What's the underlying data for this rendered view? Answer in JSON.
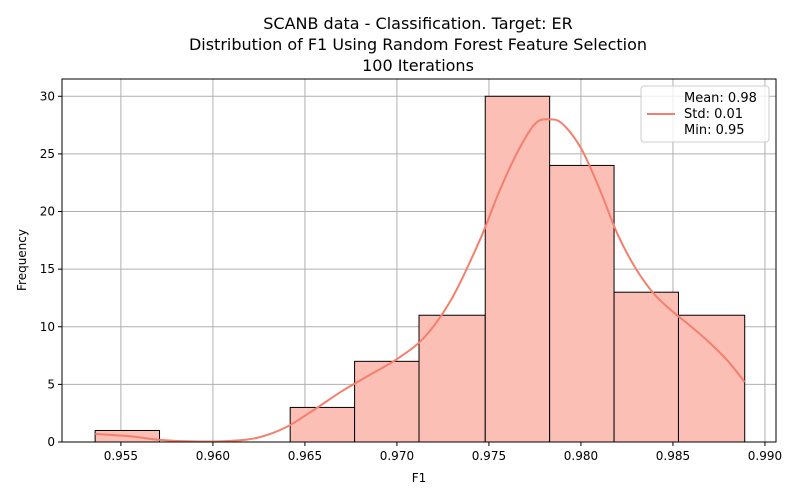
{
  "chart_data": {
    "type": "histogram",
    "title_lines": [
      "SCANB data - Classification. Target: ER",
      "Distribution of F1 Using Random Forest Feature Selection",
      "100 Iterations"
    ],
    "xlabel": "F1",
    "ylabel": "Frequency",
    "xlim": [
      0.9518,
      0.9906
    ],
    "ylim": [
      0,
      31.5
    ],
    "x_ticks": [
      0.955,
      0.96,
      0.965,
      0.97,
      0.975,
      0.98,
      0.985,
      0.99
    ],
    "x_tick_labels": [
      "0.955",
      "0.960",
      "0.965",
      "0.970",
      "0.975",
      "0.980",
      "0.985",
      "0.990"
    ],
    "y_ticks": [
      0,
      5,
      10,
      15,
      20,
      25,
      30
    ],
    "y_tick_labels": [
      "0",
      "5",
      "10",
      "15",
      "20",
      "25",
      "30"
    ],
    "grid": true,
    "bins": [
      {
        "x0": 0.9536,
        "x1": 0.9571,
        "count": 1
      },
      {
        "x0": 0.9571,
        "x1": 0.9606,
        "count": 0
      },
      {
        "x0": 0.9606,
        "x1": 0.9642,
        "count": 0
      },
      {
        "x0": 0.9642,
        "x1": 0.9677,
        "count": 3
      },
      {
        "x0": 0.9677,
        "x1": 0.9712,
        "count": 7
      },
      {
        "x0": 0.9712,
        "x1": 0.9748,
        "count": 11
      },
      {
        "x0": 0.9748,
        "x1": 0.9783,
        "count": 30
      },
      {
        "x0": 0.9783,
        "x1": 0.9818,
        "count": 24
      },
      {
        "x0": 0.9818,
        "x1": 0.9853,
        "count": 13
      },
      {
        "x0": 0.9853,
        "x1": 0.9889,
        "count": 11
      }
    ],
    "kde": {
      "x": [
        0.9536,
        0.9555,
        0.957,
        0.959,
        0.961,
        0.9625,
        0.964,
        0.9655,
        0.967,
        0.9685,
        0.97,
        0.9715,
        0.973,
        0.9745,
        0.9755,
        0.9765,
        0.9775,
        0.9783,
        0.979,
        0.98,
        0.981,
        0.982,
        0.983,
        0.984,
        0.985,
        0.986,
        0.987,
        0.988,
        0.9889
      ],
      "y": [
        0.7,
        0.5,
        0.2,
        0.05,
        0.1,
        0.4,
        1.3,
        2.8,
        4.4,
        5.8,
        7.2,
        9.1,
        12.5,
        17.5,
        21.5,
        25.0,
        27.6,
        28.0,
        27.6,
        25.5,
        22.0,
        18.0,
        15.0,
        12.8,
        11.3,
        10.0,
        8.6,
        7.0,
        5.2
      ]
    },
    "legend": {
      "placement": "top-right",
      "lines": [
        "Mean: 0.98",
        "Std: 0.01",
        "Min: 0.95"
      ]
    },
    "colors": {
      "bar_fill": "#fbbfb6",
      "bar_edge": "#000000",
      "kde_line": "#f47f6d",
      "grid": "#b0b0b0"
    }
  }
}
